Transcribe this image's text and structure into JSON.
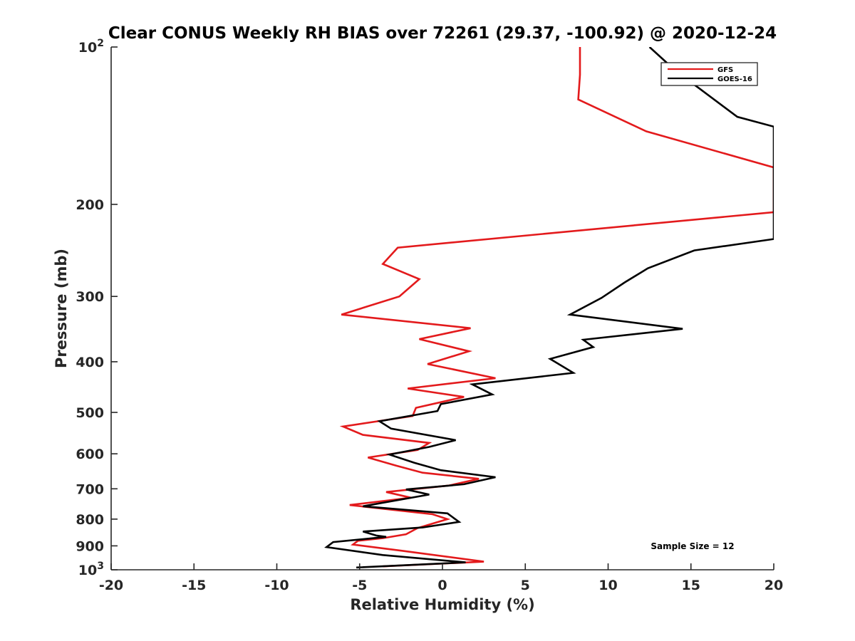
{
  "chart_data": {
    "type": "line",
    "title": "Clear CONUS Weekly RH BIAS over 72261 (29.37, -100.92) @ 2020-12-24",
    "xlabel": "Relative Humidity (%)",
    "ylabel": "Pressure (mb)",
    "xlim": [
      -20,
      20
    ],
    "ylim": [
      100,
      1000
    ],
    "y_scale": "log",
    "y_reversed": true,
    "grid": false,
    "legend_position": "top-right",
    "x_ticks": [
      -20,
      -15,
      -10,
      -5,
      0,
      5,
      10,
      15,
      20
    ],
    "x_tick_labels": [
      "-20",
      "-15",
      "-10",
      "-5",
      "0",
      "5",
      "10",
      "15",
      "20"
    ],
    "y_ticks": [
      {
        "value": 100,
        "base": "10",
        "exp": "2"
      },
      {
        "value": 200,
        "base": "200",
        "exp": ""
      },
      {
        "value": 300,
        "base": "300",
        "exp": ""
      },
      {
        "value": 400,
        "base": "400",
        "exp": ""
      },
      {
        "value": 500,
        "base": "500",
        "exp": ""
      },
      {
        "value": 600,
        "base": "600",
        "exp": ""
      },
      {
        "value": 700,
        "base": "700",
        "exp": ""
      },
      {
        "value": 800,
        "base": "800",
        "exp": ""
      },
      {
        "value": 900,
        "base": "900",
        "exp": ""
      },
      {
        "value": 1000,
        "base": "10",
        "exp": "3"
      }
    ],
    "annotation": "Sample Size = 12",
    "series": [
      {
        "name": "GFS",
        "color": "#e31a1c",
        "points": [
          [
            8.3,
            100
          ],
          [
            8.3,
            113
          ],
          [
            8.2,
            126
          ],
          [
            12.3,
            145
          ],
          [
            20,
            170
          ],
          [
            20,
            207
          ],
          [
            -2.7,
            242
          ],
          [
            -3.6,
            260
          ],
          [
            -1.4,
            278
          ],
          [
            -2.6,
            300
          ],
          [
            -6.1,
            325
          ],
          [
            1.7,
            345
          ],
          [
            -1.4,
            362
          ],
          [
            1.6,
            382
          ],
          [
            -0.9,
            404
          ],
          [
            3.2,
            430
          ],
          [
            -2.1,
            450
          ],
          [
            1.3,
            467
          ],
          [
            -1.6,
            490
          ],
          [
            -1.8,
            508
          ],
          [
            -6.0,
            532
          ],
          [
            -4.8,
            552
          ],
          [
            -0.8,
            572
          ],
          [
            -1.5,
            590
          ],
          [
            -4.5,
            610
          ],
          [
            -2.8,
            632
          ],
          [
            -1.2,
            652
          ],
          [
            2.2,
            670
          ],
          [
            0.4,
            690
          ],
          [
            -3.4,
            710
          ],
          [
            -1.9,
            728
          ],
          [
            -5.6,
            752
          ],
          [
            -0.6,
            783
          ],
          [
            0.3,
            800
          ],
          [
            -1.5,
            832
          ],
          [
            -2.2,
            855
          ],
          [
            -3.6,
            870
          ],
          [
            -5.1,
            880
          ],
          [
            -5.4,
            895
          ],
          [
            -2.4,
            920
          ],
          [
            2.5,
            965
          ],
          [
            -3.6,
            985
          ]
        ]
      },
      {
        "name": "GOES-16",
        "color": "#000000",
        "points": [
          [
            12.5,
            100
          ],
          [
            14.2,
            112
          ],
          [
            15.5,
            120
          ],
          [
            17.8,
            136
          ],
          [
            20,
            142
          ],
          [
            20,
            233
          ],
          [
            15.2,
            245
          ],
          [
            12.4,
            265
          ],
          [
            11.0,
            282
          ],
          [
            9.6,
            302
          ],
          [
            7.7,
            325
          ],
          [
            14.5,
            346
          ],
          [
            8.5,
            363
          ],
          [
            9.1,
            375
          ],
          [
            6.5,
            395
          ],
          [
            7.9,
            420
          ],
          [
            1.8,
            442
          ],
          [
            3.0,
            462
          ],
          [
            -0.1,
            482
          ],
          [
            -0.3,
            497
          ],
          [
            -3.8,
            520
          ],
          [
            -3.1,
            537
          ],
          [
            0.8,
            565
          ],
          [
            -0.8,
            582
          ],
          [
            -3.2,
            602
          ],
          [
            -1.7,
            624
          ],
          [
            -0.1,
            645
          ],
          [
            3.2,
            665
          ],
          [
            1.3,
            686
          ],
          [
            -2.2,
            702
          ],
          [
            -0.8,
            718
          ],
          [
            -4.8,
            756
          ],
          [
            0.3,
            780
          ],
          [
            1.0,
            810
          ],
          [
            -1.2,
            830
          ],
          [
            -4.8,
            845
          ],
          [
            -4.0,
            860
          ],
          [
            -3.4,
            865
          ],
          [
            -6.6,
            885
          ],
          [
            -7.0,
            905
          ],
          [
            -3.6,
            937
          ],
          [
            1.4,
            968
          ],
          [
            -5.2,
            990
          ]
        ]
      }
    ]
  }
}
